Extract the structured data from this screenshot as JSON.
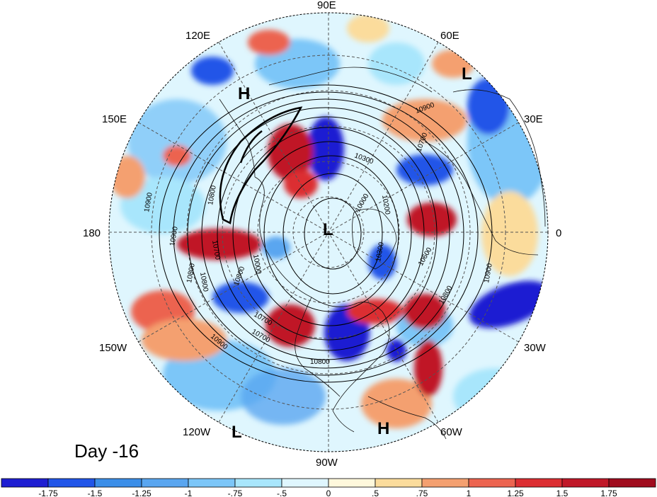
{
  "panel_label": "Day -16",
  "longitude_labels": [
    "90E",
    "60E",
    "30E",
    "0",
    "30W",
    "60W",
    "90W",
    "120W",
    "150W",
    "180",
    "150E",
    "120E"
  ],
  "pressure_centers": [
    "H",
    "L",
    "L",
    "L",
    "H"
  ],
  "contour_labels": [
    "10900",
    "10700",
    "10300",
    "10200",
    "10000",
    "10800",
    "10700",
    "10900",
    "10800",
    "10900",
    "10700",
    "10000",
    "10800",
    "10800",
    "10700",
    "10900",
    "10800",
    "10600",
    "10300",
    "10800",
    "10900"
  ],
  "colorbar": {
    "tick_labels": [
      "-1.75",
      "-1.5",
      "-1.25",
      "-1",
      "-.75",
      "-.5",
      "0",
      ".5",
      ".75",
      "1",
      "1.25",
      "1.5",
      "1.75"
    ],
    "colors": [
      "#1e1ed2",
      "#2155e8",
      "#3b8ee8",
      "#5aa6f0",
      "#7cc6f8",
      "#a8e6fc",
      "#dff6fe",
      "#fff8dc",
      "#fbdc9c",
      "#f4a070",
      "#ec6450",
      "#dc2e32",
      "#c01828",
      "#a00c1e"
    ]
  },
  "palette": {
    "strong_negative": "#1e1ed2",
    "negative": "#5aa6f0",
    "near_zero": "#dff6fe",
    "positive": "#f4a070",
    "strong_positive": "#c01828"
  }
}
